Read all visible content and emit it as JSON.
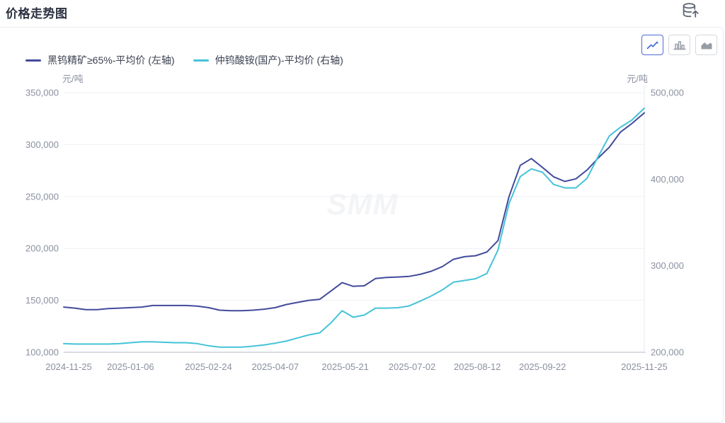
{
  "header": {
    "title": "价格走势图"
  },
  "toolbar": {
    "export_icon": "database-export-icon",
    "chart_type_buttons": [
      {
        "icon": "line-chart-icon",
        "active": true
      },
      {
        "icon": "bar-chart-icon",
        "active": false
      },
      {
        "icon": "area-chart-icon",
        "active": false
      }
    ]
  },
  "colors": {
    "series1": "#424b9b",
    "series2": "#45c3d8",
    "active_button_border": "#4a6bd8",
    "axis_text": "#8a90a0",
    "grid_line": "#eef0f5",
    "axis_line": "#b6bac4",
    "right_axis_line": "#e6e8ef",
    "watermark": "#f3f4f6",
    "legend_text": "#3b4050",
    "title_text": "#2c3140"
  },
  "chart_data": {
    "type": "line",
    "title": "价格走势图",
    "unit_left": "元/吨",
    "unit_right": "元/吨",
    "watermark": "SMM",
    "legend_position": "top-left",
    "grid": true,
    "x_tick_labels": [
      "2024-11-25",
      "2025-01-06",
      "2025-02-24",
      "2025-04-07",
      "2025-05-21",
      "2025-07-02",
      "2025-08-12",
      "2025-09-22",
      "2025-11-25"
    ],
    "left_axis": {
      "min": 100000,
      "max": 350000,
      "ticks": [
        100000,
        150000,
        200000,
        250000,
        300000,
        350000
      ]
    },
    "right_axis": {
      "min": 200000,
      "max": 500000,
      "ticks": [
        200000,
        300000,
        400000,
        500000
      ]
    },
    "dates": [
      "2024-11-25",
      "2024-12-02",
      "2024-12-09",
      "2024-12-16",
      "2024-12-23",
      "2024-12-30",
      "2025-01-06",
      "2025-01-13",
      "2025-01-20",
      "2025-01-27",
      "2025-02-03",
      "2025-02-10",
      "2025-02-17",
      "2025-02-24",
      "2025-03-03",
      "2025-03-10",
      "2025-03-17",
      "2025-03-24",
      "2025-03-31",
      "2025-04-07",
      "2025-04-14",
      "2025-04-21",
      "2025-04-28",
      "2025-05-05",
      "2025-05-12",
      "2025-05-19",
      "2025-05-26",
      "2025-06-02",
      "2025-06-09",
      "2025-06-16",
      "2025-06-23",
      "2025-06-30",
      "2025-07-07",
      "2025-07-14",
      "2025-07-21",
      "2025-07-28",
      "2025-08-04",
      "2025-08-11",
      "2025-08-18",
      "2025-08-25",
      "2025-09-01",
      "2025-09-08",
      "2025-09-15",
      "2025-09-22",
      "2025-09-29",
      "2025-10-06",
      "2025-10-13",
      "2025-10-20",
      "2025-10-27",
      "2025-11-03",
      "2025-11-10",
      "2025-11-17",
      "2025-11-25"
    ],
    "series": [
      {
        "name": "黑钨精矿≥65%-平均价 (左轴)",
        "axis": "left",
        "color": "#424b9b",
        "values": [
          143500,
          142500,
          141000,
          141000,
          142000,
          142500,
          143000,
          143500,
          145000,
          145000,
          145000,
          145000,
          144500,
          143000,
          140500,
          140000,
          140000,
          140500,
          141500,
          143000,
          146000,
          148000,
          150000,
          151000,
          159000,
          167000,
          163500,
          164000,
          171000,
          172000,
          172500,
          173000,
          175000,
          178000,
          182500,
          189500,
          192000,
          193000,
          196500,
          207500,
          250000,
          280000,
          286500,
          278000,
          269000,
          264500,
          267000,
          275500,
          287000,
          297500,
          312000,
          320000,
          330500
        ]
      },
      {
        "name": "仲钨酸铵(国产)-平均价 (右轴)",
        "axis": "right",
        "color": "#45c3d8",
        "values": [
          210000,
          209500,
          209500,
          209500,
          209500,
          210000,
          211000,
          212000,
          212000,
          211500,
          211000,
          211000,
          210000,
          207500,
          206000,
          206000,
          206000,
          207000,
          208500,
          210500,
          213000,
          216500,
          220000,
          222500,
          234000,
          248000,
          240500,
          243000,
          251000,
          251000,
          251500,
          253500,
          259000,
          265000,
          272000,
          281000,
          283000,
          285000,
          291000,
          318000,
          372000,
          403000,
          412000,
          408000,
          394000,
          390000,
          390000,
          401000,
          426000,
          450000,
          460000,
          468000,
          482000
        ]
      }
    ]
  }
}
